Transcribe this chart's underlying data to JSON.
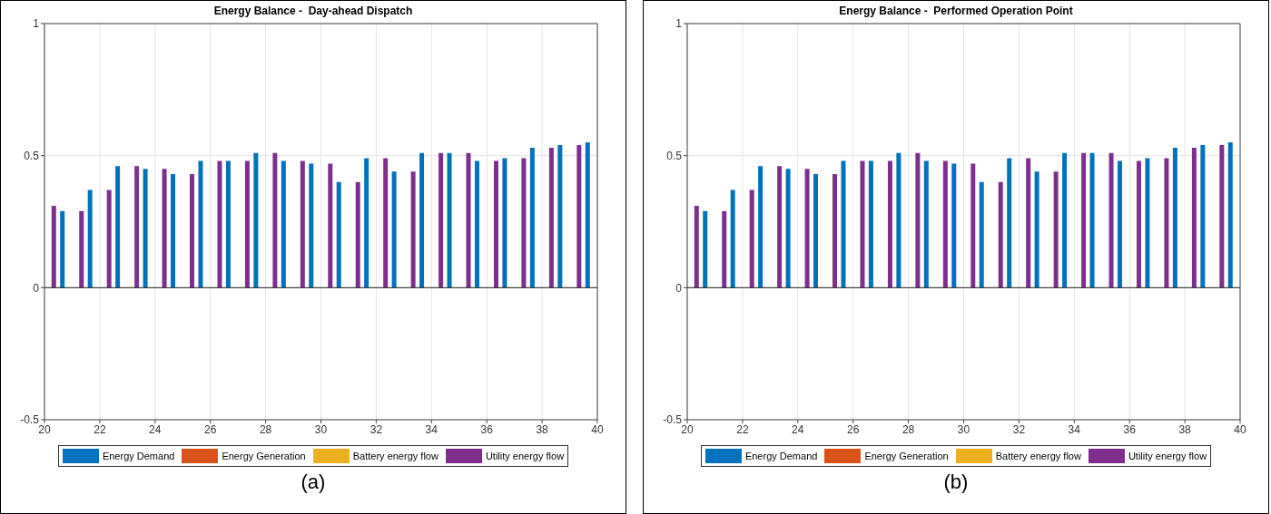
{
  "chart_data": [
    {
      "type": "bar",
      "title": "Energy Balance -  Day-ahead Dispatch",
      "x": [
        20,
        21,
        22,
        23,
        24,
        25,
        26,
        27,
        28,
        29,
        30,
        31,
        32,
        33,
        34,
        35,
        36,
        37,
        38,
        39,
        40
      ],
      "series": [
        {
          "name": "Energy Demand",
          "color": "#0072bd",
          "values": [
            null,
            0.29,
            0.37,
            0.46,
            0.45,
            0.43,
            0.48,
            0.48,
            0.51,
            0.48,
            0.47,
            0.4,
            0.49,
            0.44,
            0.51,
            0.51,
            0.48,
            0.49,
            0.53,
            0.54,
            0.55
          ]
        },
        {
          "name": "Energy Generation",
          "color": "#d95319",
          "values": [
            0,
            0,
            0,
            0,
            0,
            0,
            0,
            0,
            0,
            0,
            0,
            0,
            0,
            0,
            0,
            0,
            0,
            0,
            0,
            0,
            0
          ]
        },
        {
          "name": "Battery energy flow",
          "color": "#edb120",
          "values": [
            0,
            0,
            0,
            0,
            0,
            0,
            0,
            0,
            0,
            0,
            0,
            0,
            0,
            0,
            0,
            0,
            0,
            0,
            0,
            0,
            0
          ]
        },
        {
          "name": "Utility energy flow",
          "color": "#7e2f8e",
          "values": [
            0.31,
            0.29,
            0.37,
            0.46,
            0.45,
            0.43,
            0.48,
            0.48,
            0.51,
            0.48,
            0.47,
            0.4,
            0.49,
            0.44,
            0.51,
            0.51,
            0.48,
            0.49,
            0.53,
            0.54,
            null
          ]
        }
      ],
      "xlim": [
        20,
        40
      ],
      "xticks": [
        20,
        22,
        24,
        26,
        28,
        30,
        32,
        34,
        36,
        38,
        40
      ],
      "ylim": [
        -0.5,
        1
      ],
      "yticks": [
        -0.5,
        0,
        0.5,
        1
      ],
      "grid": true,
      "legend": "bottom",
      "annotations": [
        "(a)"
      ]
    },
    {
      "type": "bar",
      "title": "Energy Balance -  Performed Operation Point",
      "x": [
        20,
        21,
        22,
        23,
        24,
        25,
        26,
        27,
        28,
        29,
        30,
        31,
        32,
        33,
        34,
        35,
        36,
        37,
        38,
        39,
        40
      ],
      "series": [
        {
          "name": "Energy Demand",
          "color": "#0072bd",
          "values": [
            null,
            0.29,
            0.37,
            0.46,
            0.45,
            0.43,
            0.48,
            0.48,
            0.51,
            0.48,
            0.47,
            0.4,
            0.49,
            0.44,
            0.51,
            0.51,
            0.48,
            0.49,
            0.53,
            0.54,
            0.55
          ]
        },
        {
          "name": "Energy Generation",
          "color": "#d95319",
          "values": [
            0,
            0,
            0,
            0,
            0,
            0,
            0,
            0,
            0,
            0,
            0,
            0,
            0,
            0,
            0,
            0,
            0,
            0,
            0,
            0,
            0
          ]
        },
        {
          "name": "Battery energy flow",
          "color": "#edb120",
          "values": [
            0,
            0,
            0,
            0,
            0,
            0,
            0,
            0,
            0,
            0,
            0,
            0,
            0,
            0,
            0,
            0,
            0,
            0,
            0,
            0,
            0
          ]
        },
        {
          "name": "Utility energy flow",
          "color": "#7e2f8e",
          "values": [
            0.31,
            0.29,
            0.37,
            0.46,
            0.45,
            0.43,
            0.48,
            0.48,
            0.51,
            0.48,
            0.47,
            0.4,
            0.49,
            0.44,
            0.51,
            0.51,
            0.48,
            0.49,
            0.53,
            0.54,
            null
          ]
        }
      ],
      "xlim": [
        20,
        40
      ],
      "xticks": [
        20,
        22,
        24,
        26,
        28,
        30,
        32,
        34,
        36,
        38,
        40
      ],
      "ylim": [
        -0.5,
        1
      ],
      "yticks": [
        -0.5,
        0,
        0.5,
        1
      ],
      "grid": true,
      "legend": "bottom",
      "annotations": [
        "(b)"
      ]
    }
  ]
}
